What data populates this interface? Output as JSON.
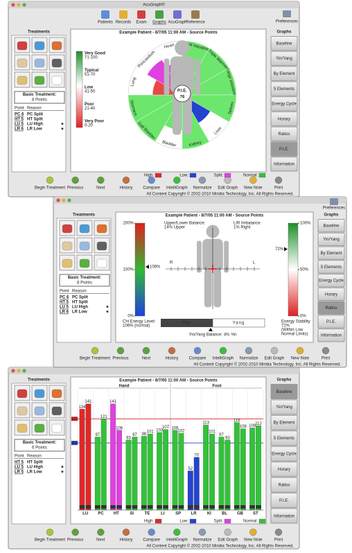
{
  "app_title": "AcuGraph®",
  "toolbar": [
    "Patients",
    "Records",
    "Exam",
    "Graphs",
    "AcuGraph",
    "Reference"
  ],
  "preferences": "Preferences",
  "treatments_heading": "Treatments",
  "graphs_heading": "Graphs",
  "graph_buttons": [
    "Baseline",
    "Yin/Yang",
    "By Element",
    "5 Elements",
    "Energy Cycle",
    "Horary",
    "Ratios",
    "P.I.E.",
    "Information"
  ],
  "table_header": [
    "Point",
    "Reason"
  ],
  "bottom_toolbar": [
    "Begin Treatment",
    "Previous",
    "Next",
    "History",
    "Compare",
    "IntelliGraph",
    "Normalize",
    "Edit Graph",
    "New Note",
    "Print"
  ],
  "copyright": "All Content Copyright © 2002-2010 Miridia Technology, Inc. All Rights Reserved.",
  "status_legend": [
    {
      "label": "High:",
      "color": "#e02828"
    },
    {
      "label": "Low:",
      "color": "#2444d0"
    },
    {
      "label": "Split:",
      "color": "#e040e0"
    },
    {
      "label": "Normal:",
      "color": "#33c23a"
    }
  ],
  "windows": [
    {
      "treatment_label": "Basic Treatment:",
      "treatment_count": "8 Points",
      "active_button": 7,
      "points": [
        {
          "point": "PC 6",
          "reason": "PC Split"
        },
        {
          "point": "HT 5",
          "reason": "HT Split"
        },
        {
          "point": "LU 5",
          "reason": "LU High",
          "flag": "★"
        },
        {
          "point": "LR 6",
          "reason": "LR Low",
          "flag": "★"
        }
      ]
    },
    {
      "treatment_label": "Basic Treatment:",
      "treatment_count": "8 Points",
      "active_button": 6,
      "points": [
        {
          "point": "PC 6",
          "reason": "PC Split"
        },
        {
          "point": "HT 5",
          "reason": "HT Split"
        },
        {
          "point": "LU 5",
          "reason": "LU High",
          "flag": "★"
        },
        {
          "point": "LR 6",
          "reason": "LR Low",
          "flag": "★"
        }
      ]
    },
    {
      "treatment_label": "Basic Treatment:",
      "treatment_count": "6 Points",
      "active_button": 0,
      "points": [
        {
          "point": "HT 5",
          "reason": "HT Split"
        },
        {
          "point": "LU 5",
          "reason": "LU High",
          "flag": "★"
        },
        {
          "point": "LR 5",
          "reason": "LR Low",
          "flag": "★"
        }
      ]
    }
  ],
  "chart_data": [
    {
      "type": "polar",
      "title": "Example Patient - 8/7/05 11:00 AM - Source Points",
      "categories": [
        "Heart",
        "Small Intestine",
        "Triple Warmer",
        "Large Intestine",
        "Spleen",
        "Liver",
        "Kidney",
        "Bladder",
        "Gall Bladder",
        "Stomach",
        "Lung",
        "Pericardium"
      ],
      "values": [
        60,
        100,
        100,
        100,
        100,
        60,
        100,
        65,
        100,
        100,
        55,
        75
      ],
      "colors": [
        "#e040e0",
        "#6de66d",
        "#6de66d",
        "#6de66d",
        "#6de66d",
        "#2444d0",
        "#6de66d",
        "#6de66d",
        "#6de66d",
        "#6de66d",
        "#e84848",
        "#e040e0"
      ],
      "rlim": [
        0,
        100
      ],
      "center_label": "P.I.E.",
      "center_value": 76,
      "scale_legend": [
        {
          "label": "Very Good",
          "range": "71-100"
        },
        {
          "label": "Typical",
          "range": "51-70"
        },
        {
          "label": "Low",
          "range": "41-50"
        },
        {
          "label": "Poor",
          "range": "21-40"
        },
        {
          "label": "Very Poor",
          "range": "0-20"
        }
      ]
    },
    {
      "type": "ratios",
      "title": "Example Patient - 8/7/05 11:00 AM - Source Points",
      "chi": {
        "ylim": [
          0,
          200
        ],
        "yticks": [
          {
            "value": 0,
            "label": "0%"
          },
          {
            "value": 100,
            "label": "100%"
          },
          {
            "value": 200,
            "label": "200%"
          }
        ],
        "value": 106,
        "value_label": "106%",
        "caption": [
          "Chi Energy Level:",
          "106% (normal)"
        ]
      },
      "upper_lower": [
        "Upper/Lower Balance:",
        "14% Upper"
      ],
      "left_right": [
        "L/R Imbalance",
        "1% Right"
      ],
      "sides": [
        "R",
        "L"
      ],
      "yin_yang": {
        "labels": [
          "Yin",
          "Yang"
        ],
        "value": 4,
        "caption": "Yin/Yang Balance: 4% Yin"
      },
      "stability": {
        "ylim": [
          0,
          100
        ],
        "yticks": [
          {
            "value": 0,
            "label": "0%"
          },
          {
            "value": 50,
            "label": "50%"
          },
          {
            "value": 100,
            "label": "100%"
          }
        ],
        "value": 72,
        "value_label": "72%",
        "caption": [
          "Energy Stability",
          "72%",
          "(Within Low",
          "Normal Limits)"
        ]
      }
    },
    {
      "type": "bar",
      "title": "Example Patient - 8/7/05 11:00 AM - Source Points",
      "groups": [
        "Hand",
        "Foot"
      ],
      "categories": [
        "LU",
        "PC",
        "HT",
        "SI",
        "TE",
        "LI",
        "SP",
        "LR",
        "KI",
        "BL",
        "GB",
        "ST"
      ],
      "colors": [
        "#e02828",
        "#33c23a",
        "#e040e0",
        "#33c23a",
        "#33c23a",
        "#33c23a",
        "#33c23a",
        "#2444d0",
        "#33c23a",
        "#33c23a",
        "#33c23a",
        "#33c23a"
      ],
      "series": [
        {
          "values": [
            134,
            97,
            141,
            93,
            98,
            103,
            106,
            52,
            113,
            97,
            116,
            109
          ]
        },
        {
          "values": [
            141,
            121,
            106,
            97,
            101,
            107,
            102,
            70,
            101,
            93,
            108,
            112
          ]
        }
      ],
      "ylim": [
        0,
        160
      ],
      "high_line": 121,
      "low_line": 89
    }
  ]
}
